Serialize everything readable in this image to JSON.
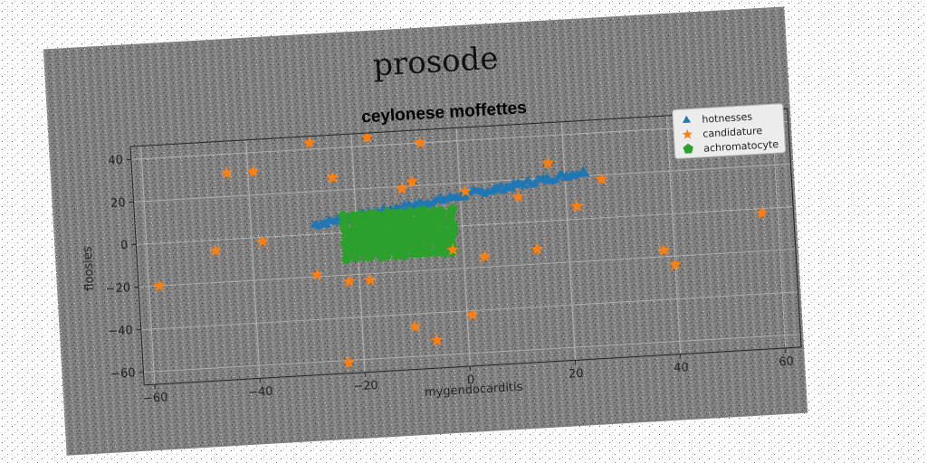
{
  "figure": {
    "suptitle": "prosode",
    "background": "#808080",
    "page_background": "#ffffff"
  },
  "chart_data": {
    "type": "scatter",
    "title": "ceylonese moffettes",
    "xlabel": "mygendocarditis",
    "ylabel": "floosies",
    "xlim": [
      -62,
      63
    ],
    "ylim": [
      -66,
      46
    ],
    "xticks": [
      -60,
      -40,
      -20,
      0,
      20,
      40,
      60
    ],
    "yticks": [
      40,
      20,
      0,
      -20,
      -40,
      -60
    ],
    "xtick_labels": [
      "−60",
      "−40",
      "−20",
      "0",
      "20",
      "40",
      "60"
    ],
    "ytick_labels": [
      "40",
      "20",
      "0",
      "−20",
      "−40",
      "−60"
    ],
    "grid": true,
    "legend_position": "top-right",
    "series": [
      {
        "name": "hotnesses",
        "marker": "triangle",
        "color": "#1f77b4",
        "band": {
          "x_start": -28,
          "x_end": 24,
          "y_start": 4.5,
          "y_end": 22,
          "spread": 3
        }
      },
      {
        "name": "candidature",
        "marker": "star",
        "color": "#ff7f0e",
        "points": [
          [
            -58,
            -20
          ],
          [
            -47,
            -5
          ],
          [
            -44,
            31
          ],
          [
            -39,
            31
          ],
          [
            -38,
            -2
          ],
          [
            -28,
            43
          ],
          [
            -28,
            -19
          ],
          [
            -24,
            26
          ],
          [
            -22,
            -23
          ],
          [
            -18,
            -23
          ],
          [
            -17,
            44
          ],
          [
            -23,
            -61
          ],
          [
            -11,
            19
          ],
          [
            -9,
            22
          ],
          [
            -7,
            40
          ],
          [
            -10,
            -46
          ],
          [
            -6,
            -53
          ],
          [
            -2,
            -11
          ],
          [
            1,
            16
          ],
          [
            1,
            -42
          ],
          [
            4,
            -15
          ],
          [
            11,
            12
          ],
          [
            14,
            -13
          ],
          [
            17,
            27
          ],
          [
            22,
            6
          ],
          [
            27,
            18
          ],
          [
            38,
            -17
          ],
          [
            40,
            -24
          ],
          [
            57,
            -2
          ]
        ]
      },
      {
        "name": "achromatocyte",
        "marker": "pentagon",
        "color": "#2ca02c",
        "block": {
          "x_min": -22,
          "x_max": -2,
          "y_min": -12,
          "y_max": 8
        }
      }
    ]
  }
}
